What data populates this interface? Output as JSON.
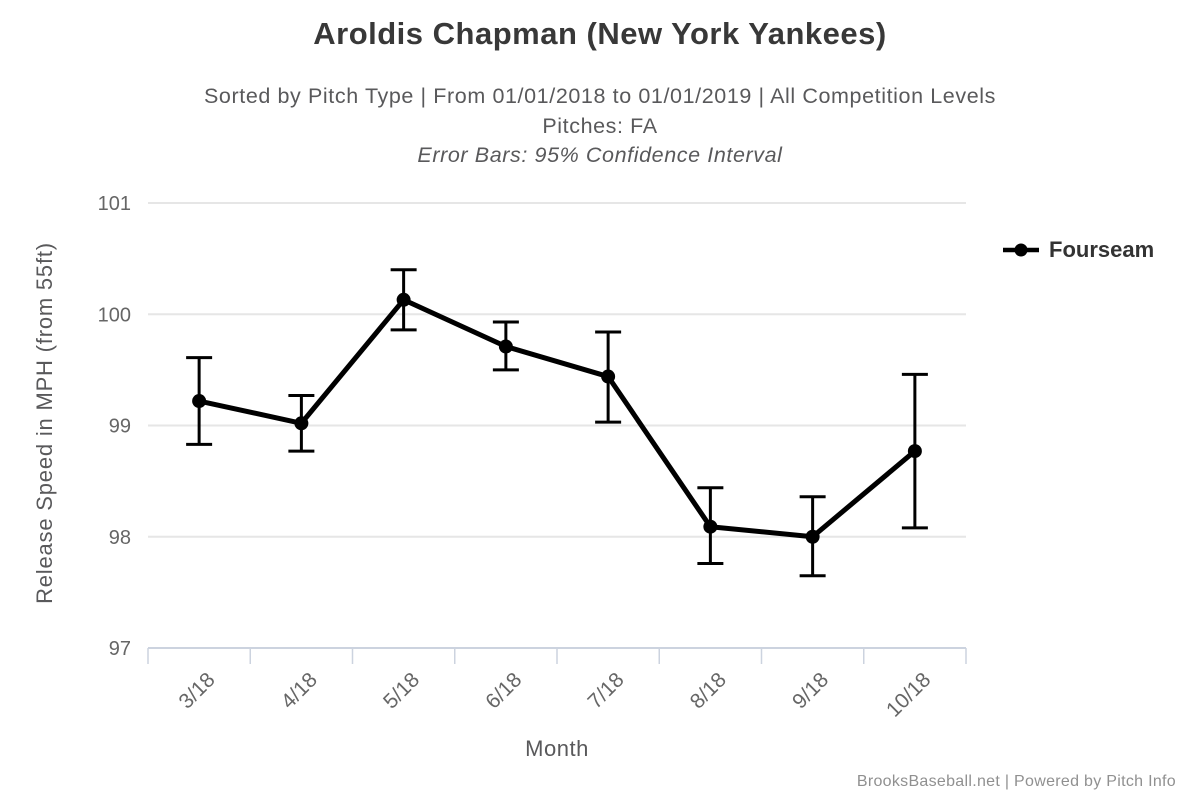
{
  "chart_data": {
    "type": "line",
    "title": "Aroldis Chapman (New York Yankees)",
    "subtitle": [
      "Sorted by Pitch Type | From 01/01/2018 to 01/01/2019 | All Competition Levels",
      "Pitches: FA",
      "Error Bars: 95% Confidence Interval"
    ],
    "categories": [
      "3/18",
      "4/18",
      "5/18",
      "6/18",
      "7/18",
      "8/18",
      "9/18",
      "10/18"
    ],
    "series": [
      {
        "name": "Fourseam",
        "color": "#000000",
        "values": [
          99.22,
          99.02,
          100.13,
          99.71,
          99.44,
          98.09,
          98.0,
          98.77
        ],
        "ci_high": [
          99.61,
          99.27,
          100.4,
          99.93,
          99.84,
          98.44,
          98.36,
          99.46
        ],
        "ci_low": [
          98.83,
          98.77,
          99.86,
          99.5,
          99.03,
          97.76,
          97.65,
          98.08
        ]
      }
    ],
    "xlabel": "Month",
    "ylabel": "Release Speed in MPH (from 55ft)",
    "yticks": [
      97,
      98,
      99,
      100,
      101
    ],
    "ylim": [
      97,
      101
    ],
    "grid": true,
    "legend_position": "right",
    "error_bars": "95% Confidence Interval"
  },
  "footer": {
    "text": "BrooksBaseball.net | Powered by Pitch Info"
  },
  "colors": {
    "series": "#000000",
    "grid": "#e6e6e6",
    "axis_line": "#ccd3df",
    "tick_label": "#666666",
    "title": "#383838",
    "subtitle": "#59595b",
    "legend_text": "#333333",
    "footer_text": "#909090"
  }
}
